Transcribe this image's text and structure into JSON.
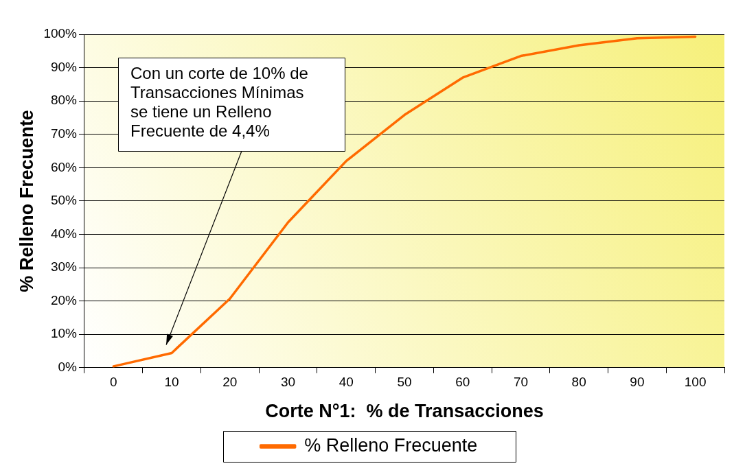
{
  "chart_data": {
    "type": "line",
    "xlabel": "Corte N°1:  % de Transacciones",
    "ylabel": "% Relleno Frecuente",
    "categories": [
      "0",
      "10",
      "20",
      "30",
      "40",
      "50",
      "60",
      "70",
      "80",
      "90",
      "100"
    ],
    "series": [
      {
        "name": "% Relleno Frecuente",
        "color": "#ff6a00",
        "values": [
          0.4,
          4.4,
          20.7,
          43.6,
          62,
          75.8,
          87,
          93.5,
          96.7,
          98.8,
          99.3
        ]
      }
    ],
    "ylim": [
      0,
      100
    ],
    "yticks": [
      {
        "value": 0,
        "label": "0%"
      },
      {
        "value": 10,
        "label": "10%"
      },
      {
        "value": 20,
        "label": "20%"
      },
      {
        "value": 30,
        "label": "30%"
      },
      {
        "value": 40,
        "label": "40%"
      },
      {
        "value": 50,
        "label": "50%"
      },
      {
        "value": 60,
        "label": "60%"
      },
      {
        "value": 70,
        "label": "70%"
      },
      {
        "value": 80,
        "label": "80%"
      },
      {
        "value": 90,
        "label": "90%"
      },
      {
        "value": 100,
        "label": "100%"
      }
    ],
    "grid": "y",
    "legend": "bottom",
    "marker": "none",
    "line_style": "solid",
    "annotations": [
      "Con un corte de 10% de Transacciones Mínimas se tiene un Relleno Frecuente de 4,4%"
    ]
  }
}
